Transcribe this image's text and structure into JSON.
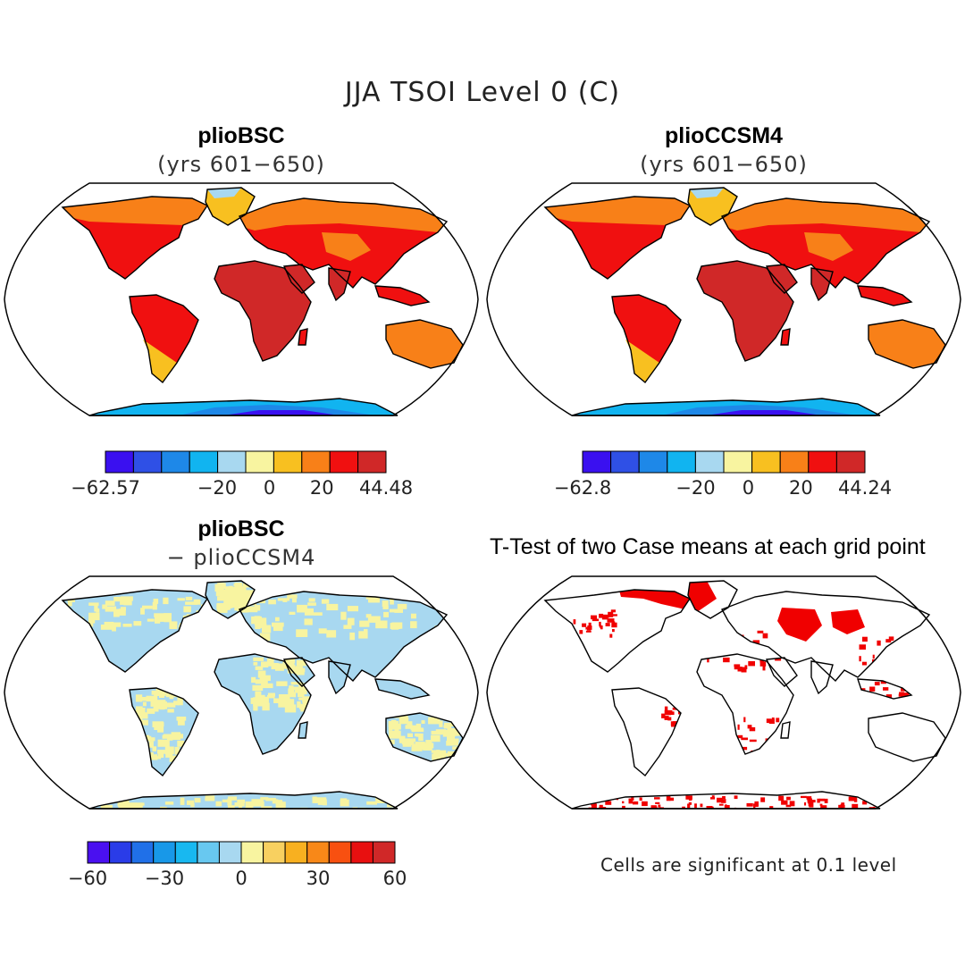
{
  "title": "JJA TSOI Level 0 (C)",
  "panels": {
    "top_left": {
      "title": "plioBSC",
      "subtitle": "(yrs 601−650)"
    },
    "top_right": {
      "title": "plioCCSM4",
      "subtitle": "(yrs 601−650)"
    },
    "bottom_left": {
      "title": "plioBSC",
      "subtitle": "− plioCCSM4"
    },
    "bottom_right": {
      "title": "T-Test of two Case means at each grid point"
    }
  },
  "colorbars": {
    "top_left": {
      "colors": [
        "#3a10f0",
        "#2f50e6",
        "#1e88e8",
        "#11b4f0",
        "#a8d8f0",
        "#f8f4a0",
        "#f8c020",
        "#f88018",
        "#f01010",
        "#d02828"
      ],
      "labels": [
        "−62.57",
        "−20",
        "0",
        "20",
        "44.48"
      ],
      "values": [
        -62.57,
        -20,
        0,
        20,
        44.48
      ]
    },
    "top_right": {
      "colors": [
        "#3a10f0",
        "#2f50e6",
        "#1e88e8",
        "#11b4f0",
        "#a8d8f0",
        "#f8f4a0",
        "#f8c020",
        "#f88018",
        "#f01010",
        "#d02828"
      ],
      "labels": [
        "−62.8",
        "−20",
        "0",
        "20",
        "44.24"
      ],
      "values": [
        -62.8,
        -20,
        0,
        20,
        44.24
      ]
    },
    "bottom_left": {
      "colors": [
        "#4a10f0",
        "#2a3ce8",
        "#2070e8",
        "#1898e8",
        "#18b8f0",
        "#68c8f0",
        "#a8d8f0",
        "#f8f4a0",
        "#f8d060",
        "#f8b020",
        "#f88818",
        "#f85010",
        "#e81010",
        "#d02828"
      ],
      "labels": [
        "−60",
        "−30",
        "0",
        "30",
        "60"
      ],
      "values": [
        -60,
        -30,
        0,
        30,
        60
      ]
    }
  },
  "note": "Cells are significant at 0.1 level",
  "colors": {
    "ocean": "#ffffff",
    "significant": "#f00000",
    "diff_land": "#a8d8f0",
    "diff_warm": "#f8f4a0"
  }
}
